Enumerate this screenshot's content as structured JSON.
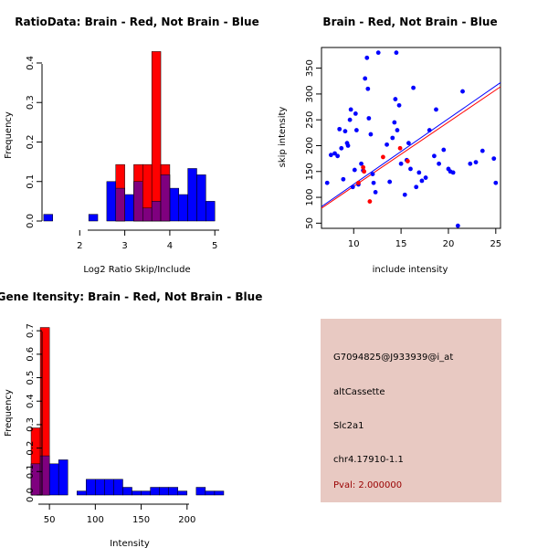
{
  "colors": {
    "brain": "#ff0000",
    "not_brain": "#0000ff",
    "overlap": "#7f007f",
    "info_bg": "#e8c9c2",
    "pval_text": "#990000"
  },
  "chart_data": [
    {
      "id": "ratio",
      "type": "bar",
      "title": "RatioData: Brain - Red, Not Brain - Blue",
      "xlabel": "Log2 Ratio Skip/Include",
      "ylabel": "Frequency",
      "xlim": [
        1.0,
        5.3
      ],
      "ylim": [
        0,
        0.43
      ],
      "xticks": [
        "2",
        "3",
        "4",
        "5"
      ],
      "xtick_values": [
        2,
        3,
        4,
        5
      ],
      "yticks": [
        "0.0",
        "0.1",
        "0.2",
        "0.3",
        "0.4"
      ],
      "ytick_values": [
        0,
        0.1,
        0.2,
        0.3,
        0.4
      ],
      "series": [
        {
          "name": "Not Brain",
          "color": "not_brain",
          "bins": [
            [
              1.2,
              1.4,
              0.017
            ],
            [
              2.2,
              2.4,
              0.017
            ],
            [
              2.6,
              2.8,
              0.1
            ],
            [
              2.8,
              3.0,
              0.083
            ],
            [
              3.0,
              3.2,
              0.067
            ],
            [
              3.2,
              3.4,
              0.1
            ],
            [
              3.4,
              3.6,
              0.033
            ],
            [
              3.6,
              3.8,
              0.05
            ],
            [
              3.8,
              4.0,
              0.117
            ],
            [
              4.0,
              4.2,
              0.083
            ],
            [
              4.2,
              4.4,
              0.067
            ],
            [
              4.4,
              4.6,
              0.133
            ],
            [
              4.6,
              4.8,
              0.117
            ],
            [
              4.8,
              5.0,
              0.05
            ]
          ]
        },
        {
          "name": "Brain",
          "color": "brain",
          "bins": [
            [
              2.8,
              3.0,
              0.143
            ],
            [
              3.2,
              3.4,
              0.143
            ],
            [
              3.4,
              3.6,
              0.143
            ],
            [
              3.6,
              3.8,
              0.429
            ],
            [
              3.8,
              4.0,
              0.143
            ]
          ]
        }
      ]
    },
    {
      "id": "scatter",
      "type": "scatter",
      "title": "Brain - Red, Not Brain - Blue",
      "xlabel": "include intensity",
      "ylabel": "skip intensity",
      "xlim": [
        6.6,
        25.5
      ],
      "ylim": [
        40,
        390
      ],
      "xticks": [
        "10",
        "15",
        "20",
        "25"
      ],
      "xtick_values": [
        10,
        15,
        20,
        25
      ],
      "yticks": [
        "50",
        "100",
        "150",
        "200",
        "250",
        "300",
        "350"
      ],
      "ytick_values": [
        50,
        100,
        150,
        200,
        250,
        300,
        350
      ],
      "series": [
        {
          "name": "Not Brain",
          "color": "not_brain",
          "points": [
            [
              7.2,
              128
            ],
            [
              7.6,
              182
            ],
            [
              8.0,
              185
            ],
            [
              8.3,
              180
            ],
            [
              8.5,
              232
            ],
            [
              8.7,
              195
            ],
            [
              8.9,
              135
            ],
            [
              9.1,
              228
            ],
            [
              9.3,
              205
            ],
            [
              9.4,
              200
            ],
            [
              9.6,
              250
            ],
            [
              9.7,
              270
            ],
            [
              9.9,
              120
            ],
            [
              10.1,
              153
            ],
            [
              10.2,
              262
            ],
            [
              10.3,
              230
            ],
            [
              10.5,
              125
            ],
            [
              10.8,
              165
            ],
            [
              11.0,
              152
            ],
            [
              11.2,
              330
            ],
            [
              11.4,
              370
            ],
            [
              11.5,
              310
            ],
            [
              11.6,
              253
            ],
            [
              11.8,
              222
            ],
            [
              12.0,
              145
            ],
            [
              12.1,
              128
            ],
            [
              12.3,
              110
            ],
            [
              12.6,
              380
            ],
            [
              13.5,
              202
            ],
            [
              13.8,
              130
            ],
            [
              14.1,
              215
            ],
            [
              14.3,
              245
            ],
            [
              14.4,
              290
            ],
            [
              14.5,
              380
            ],
            [
              14.6,
              230
            ],
            [
              14.8,
              278
            ],
            [
              15.0,
              165
            ],
            [
              15.4,
              105
            ],
            [
              15.6,
              172
            ],
            [
              15.8,
              205
            ],
            [
              16.0,
              155
            ],
            [
              16.3,
              312
            ],
            [
              16.6,
              120
            ],
            [
              16.9,
              148
            ],
            [
              17.2,
              132
            ],
            [
              17.6,
              138
            ],
            [
              18.0,
              230
            ],
            [
              18.5,
              180
            ],
            [
              18.7,
              270
            ],
            [
              19.0,
              165
            ],
            [
              19.5,
              192
            ],
            [
              20.0,
              155
            ],
            [
              20.2,
              150
            ],
            [
              20.5,
              148
            ],
            [
              21.0,
              45
            ],
            [
              21.5,
              305
            ],
            [
              22.3,
              165
            ],
            [
              22.9,
              168
            ],
            [
              23.6,
              190
            ],
            [
              24.8,
              175
            ],
            [
              25.0,
              128
            ]
          ]
        },
        {
          "name": "Brain",
          "color": "brain",
          "points": [
            [
              10.5,
              128
            ],
            [
              11.0,
              158
            ],
            [
              11.1,
              150
            ],
            [
              11.7,
              92
            ],
            [
              13.1,
              178
            ],
            [
              14.9,
              195
            ],
            [
              15.7,
              170
            ]
          ]
        }
      ],
      "fit_lines": [
        {
          "color": "not_brain",
          "x": [
            6.6,
            25.5
          ],
          "y": [
            82,
            322
          ]
        },
        {
          "color": "brain",
          "x": [
            6.6,
            25.5
          ],
          "y": [
            79,
            314
          ]
        }
      ]
    },
    {
      "id": "intensity",
      "type": "bar",
      "title": "Gene Itensity: Brain - Red, Not Brain - Blue",
      "xlabel": "Intensity",
      "ylabel": "Frequency",
      "xlim": [
        20,
        245
      ],
      "ylim": [
        0,
        0.72
      ],
      "xticks": [
        "50",
        "100",
        "150",
        "200"
      ],
      "xtick_values": [
        50,
        100,
        150,
        200
      ],
      "yticks": [
        "0.0",
        "0.1",
        "0.2",
        "0.3",
        "0.4",
        "0.5",
        "0.6",
        "0.7"
      ],
      "ytick_values": [
        0,
        0.1,
        0.2,
        0.3,
        0.4,
        0.5,
        0.6,
        0.7
      ],
      "series": [
        {
          "name": "Not Brain",
          "color": "not_brain",
          "bins": [
            [
              30,
              40,
              0.133
            ],
            [
              40,
              50,
              0.167
            ],
            [
              50,
              60,
              0.133
            ],
            [
              60,
              70,
              0.15
            ],
            [
              80,
              90,
              0.017
            ],
            [
              90,
              100,
              0.067
            ],
            [
              100,
              110,
              0.067
            ],
            [
              110,
              120,
              0.067
            ],
            [
              120,
              130,
              0.067
            ],
            [
              130,
              140,
              0.033
            ],
            [
              140,
              150,
              0.017
            ],
            [
              150,
              160,
              0.017
            ],
            [
              160,
              170,
              0.033
            ],
            [
              170,
              180,
              0.033
            ],
            [
              180,
              190,
              0.033
            ],
            [
              190,
              200,
              0.017
            ],
            [
              210,
              220,
              0.033
            ],
            [
              220,
              230,
              0.017
            ],
            [
              230,
              240,
              0.017
            ]
          ]
        },
        {
          "name": "Brain",
          "color": "brain",
          "bins": [
            [
              30,
              40,
              0.286
            ],
            [
              40,
              50,
              0.714
            ]
          ]
        }
      ]
    }
  ],
  "info": {
    "probe": "G7094825@J933939@i_at",
    "event_type": "altCassette",
    "gene": "Slc2a1",
    "location": "chr4.17910-1.1",
    "pval": "Pval: 2.000000"
  }
}
